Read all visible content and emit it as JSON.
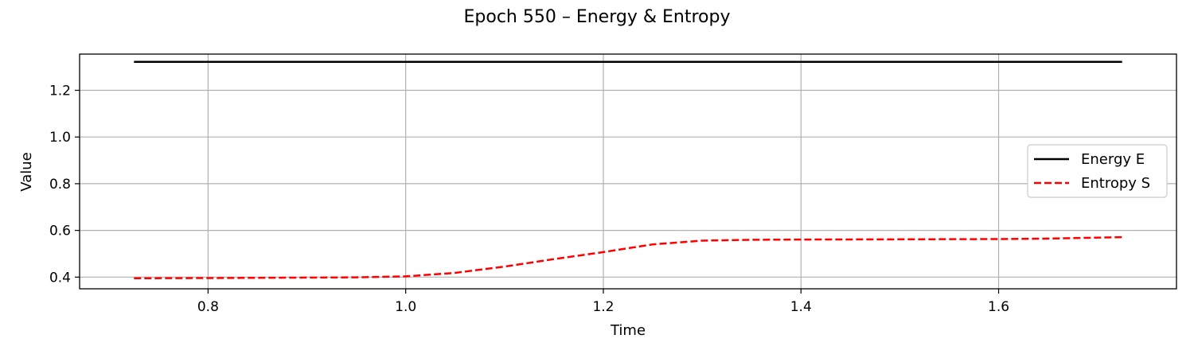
{
  "chart_data": {
    "type": "line",
    "title": "Epoch 550 – Energy & Entropy",
    "xlabel": "Time",
    "ylabel": "Value",
    "xlim": [
      0.67,
      1.78
    ],
    "ylim": [
      0.35,
      1.355
    ],
    "xticks": [
      0.8,
      1.0,
      1.2,
      1.4,
      1.6
    ],
    "xtick_labels": [
      "0.8",
      "1.0",
      "1.2",
      "1.4",
      "1.6"
    ],
    "yticks": [
      0.4,
      0.6,
      0.8,
      1.0,
      1.2
    ],
    "ytick_labels": [
      "0.4",
      "0.6",
      "0.8",
      "1.0",
      "1.2"
    ],
    "grid": true,
    "legend_position": "center-right",
    "series": [
      {
        "name": "Energy E",
        "color": "#000000",
        "style": "solid",
        "x": [
          0.725,
          1.725
        ],
        "y": [
          1.322,
          1.322
        ]
      },
      {
        "name": "Entropy S",
        "color": "#ff0000",
        "style": "dashed",
        "x": [
          0.725,
          0.8,
          0.9,
          0.95,
          1.0,
          1.05,
          1.1,
          1.15,
          1.2,
          1.25,
          1.3,
          1.35,
          1.4,
          1.5,
          1.6,
          1.65,
          1.725
        ],
        "y": [
          0.395,
          0.396,
          0.398,
          0.399,
          0.403,
          0.418,
          0.445,
          0.477,
          0.507,
          0.54,
          0.556,
          0.56,
          0.561,
          0.562,
          0.563,
          0.565,
          0.571
        ]
      }
    ]
  }
}
